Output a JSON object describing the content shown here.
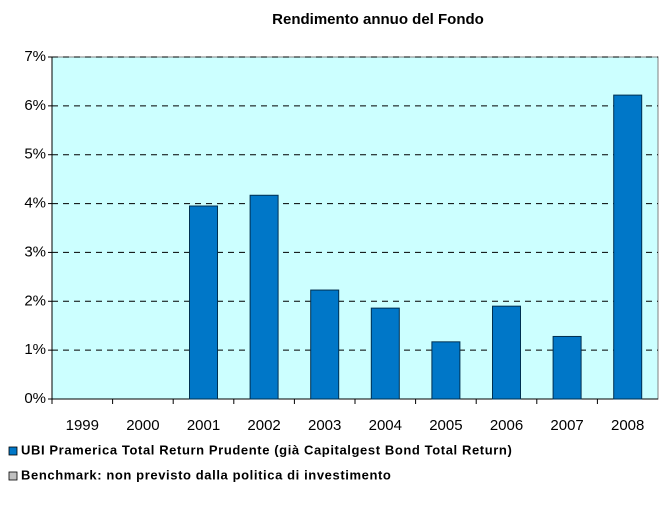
{
  "chart_data": {
    "type": "bar",
    "title": "Rendimento annuo del Fondo",
    "categories": [
      "1999",
      "2000",
      "2001",
      "2002",
      "2003",
      "2004",
      "2005",
      "2006",
      "2007",
      "2008"
    ],
    "series": [
      {
        "name": "UBI Pramerica Total Return Prudente (già Capitalgest Bond Total Return)",
        "color": "#0077c8",
        "values": [
          null,
          null,
          3.95,
          4.17,
          2.23,
          1.86,
          1.17,
          1.9,
          1.28,
          6.22
        ]
      },
      {
        "name": "Benchmark: non previsto dalla politica di investimento",
        "color": "#c0c0c0",
        "values": [
          null,
          null,
          null,
          null,
          null,
          null,
          null,
          null,
          null,
          null
        ]
      }
    ],
    "ylim": [
      0,
      7
    ],
    "yticks": [
      {
        "value": 0,
        "label": "0%"
      },
      {
        "value": 1,
        "label": "1%"
      },
      {
        "value": 2,
        "label": "2%"
      },
      {
        "value": 3,
        "label": "3%"
      },
      {
        "value": 4,
        "label": "4%"
      },
      {
        "value": 5,
        "label": "5%"
      },
      {
        "value": 6,
        "label": "6%"
      },
      {
        "value": 7,
        "label": "7%"
      }
    ],
    "grid": true,
    "background": "#ccffff"
  }
}
